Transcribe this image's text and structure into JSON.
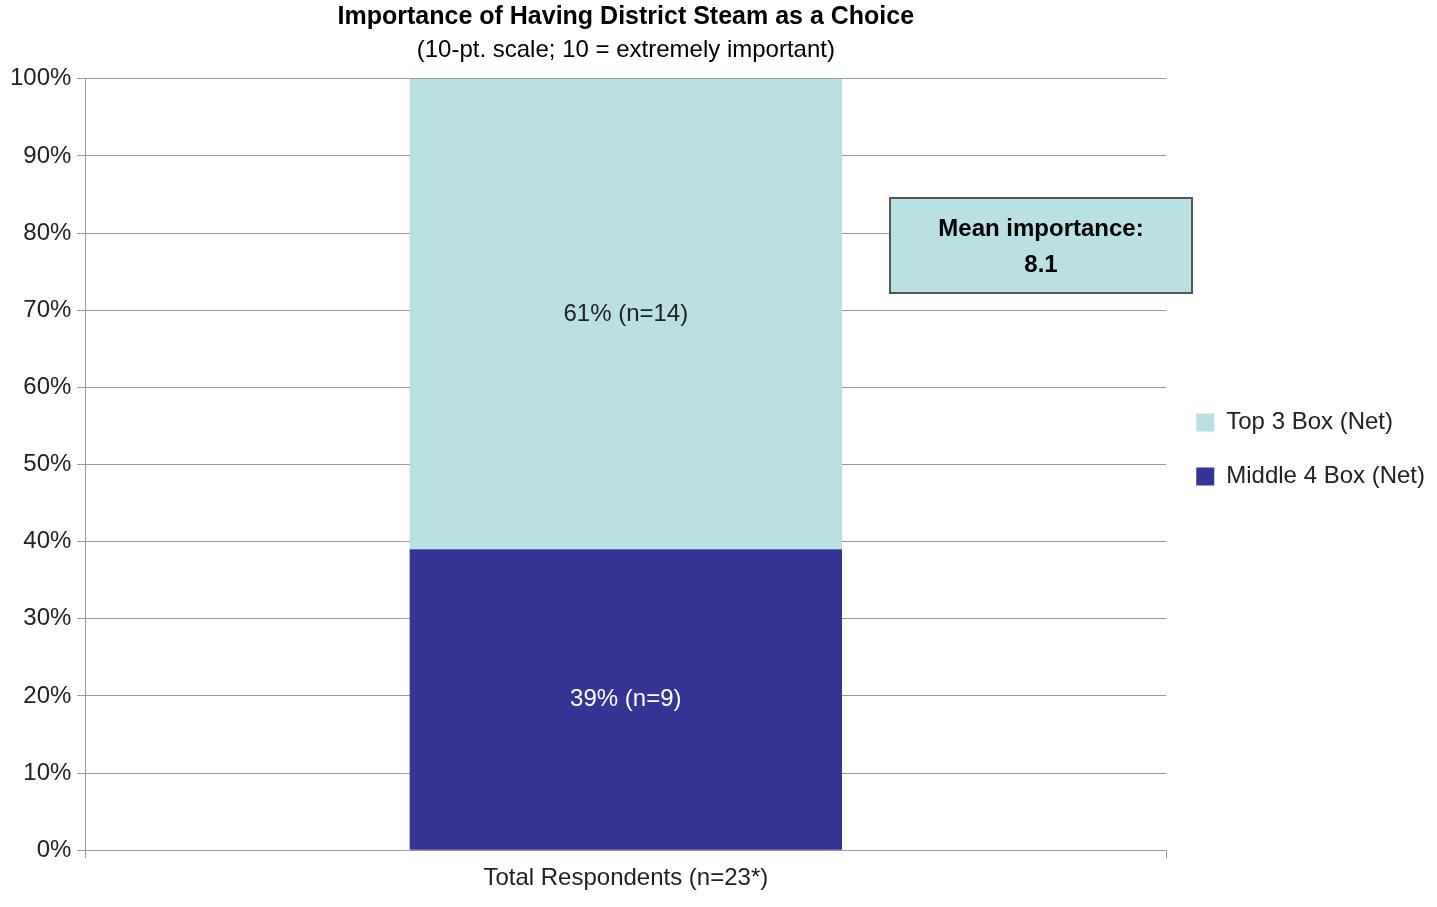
{
  "chart_data": {
    "type": "bar",
    "title": "Importance of Having District Steam as a Choice",
    "subtitle": "(10-pt. scale; 10 = extremely important)",
    "categories": [
      "Total Respondents (n=23*)"
    ],
    "stacked": true,
    "series": [
      {
        "name": "Middle 4 Box (Net)",
        "color": "#353595",
        "values": [
          39
        ],
        "value_labels": [
          "39% (n=9)"
        ]
      },
      {
        "name": "Top 3 Box (Net)",
        "color": "#b9e0e3",
        "values": [
          61
        ],
        "value_labels": [
          "61% (n=14)"
        ]
      }
    ],
    "ylim": [
      0,
      100
    ],
    "yticks": [
      {
        "value": 0,
        "label": "0%"
      },
      {
        "value": 10,
        "label": "10%"
      },
      {
        "value": 20,
        "label": "20%"
      },
      {
        "value": 30,
        "label": "30%"
      },
      {
        "value": 40,
        "label": "40%"
      },
      {
        "value": 50,
        "label": "50%"
      },
      {
        "value": 60,
        "label": "60%"
      },
      {
        "value": 70,
        "label": "70%"
      },
      {
        "value": 80,
        "label": "80%"
      },
      {
        "value": 90,
        "label": "90%"
      },
      {
        "value": 100,
        "label": "100%"
      }
    ],
    "grid": "y",
    "legend": "right",
    "annotations": [
      "Mean importance: 8.1"
    ]
  }
}
